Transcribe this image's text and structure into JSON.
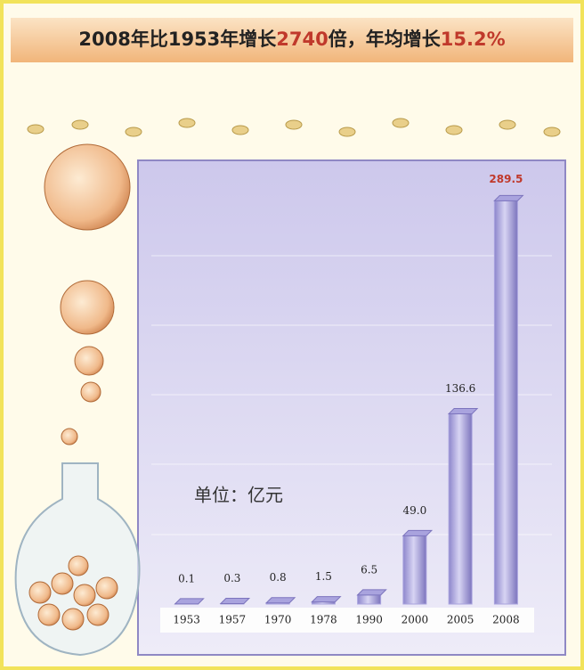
{
  "chart_data": {
    "type": "bar",
    "title": [
      "2008年比1953年增长",
      "2740",
      "倍，年均增长",
      "15.2%"
    ],
    "unit_label": "单位：亿元",
    "categories": [
      "1953",
      "1957",
      "1970",
      "1978",
      "1990",
      "2000",
      "2005",
      "2008"
    ],
    "values": [
      0.1,
      0.3,
      0.8,
      1.5,
      6.5,
      49.0,
      136.6,
      289.5
    ],
    "value_labels": [
      "0.1",
      "0.3",
      "0.8",
      "1.5",
      "6.5",
      "49.0",
      "136.6",
      "289.5"
    ],
    "color": "#a9a3de",
    "ylim": [
      0,
      300
    ]
  }
}
